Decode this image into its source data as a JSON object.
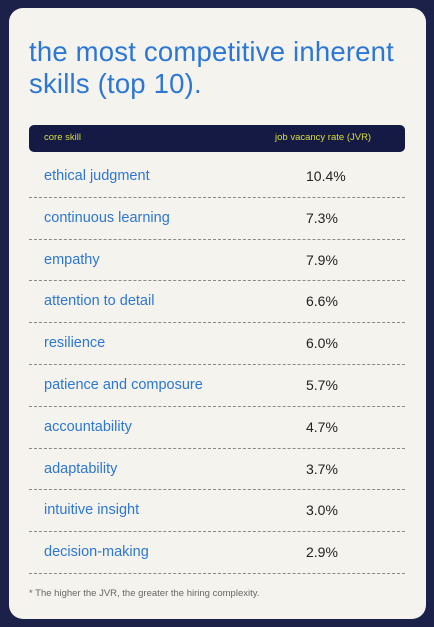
{
  "title": "the most competitive inherent skills (top 10).",
  "header": {
    "col1": "core skill",
    "col2": "job vacancy rate (JVR)"
  },
  "footnote": "* The higher the JVR, the greater the hiring complexity.",
  "colors": {
    "background": "#1c2149",
    "card": "#f5f3ee",
    "accent": "#2c77d4",
    "header_bg": "#141a44",
    "header_text": "#d8de3a"
  },
  "chart_data": {
    "type": "table",
    "title": "the most competitive inherent skills (top 10).",
    "columns": [
      "core skill",
      "job vacancy rate (JVR)"
    ],
    "rows": [
      {
        "skill": "ethical judgment",
        "rate": "10.4%"
      },
      {
        "skill": "continuous learning",
        "rate": "7.3%"
      },
      {
        "skill": "empathy",
        "rate": "7.9%"
      },
      {
        "skill": "attention to detail",
        "rate": "6.6%"
      },
      {
        "skill": "resilience",
        "rate": "6.0%"
      },
      {
        "skill": "patience and composure",
        "rate": "5.7%"
      },
      {
        "skill": "accountability",
        "rate": "4.7%"
      },
      {
        "skill": "adaptability",
        "rate": "3.7%"
      },
      {
        "skill": "intuitive insight",
        "rate": "3.0%"
      },
      {
        "skill": "decision-making",
        "rate": "2.9%"
      }
    ]
  }
}
